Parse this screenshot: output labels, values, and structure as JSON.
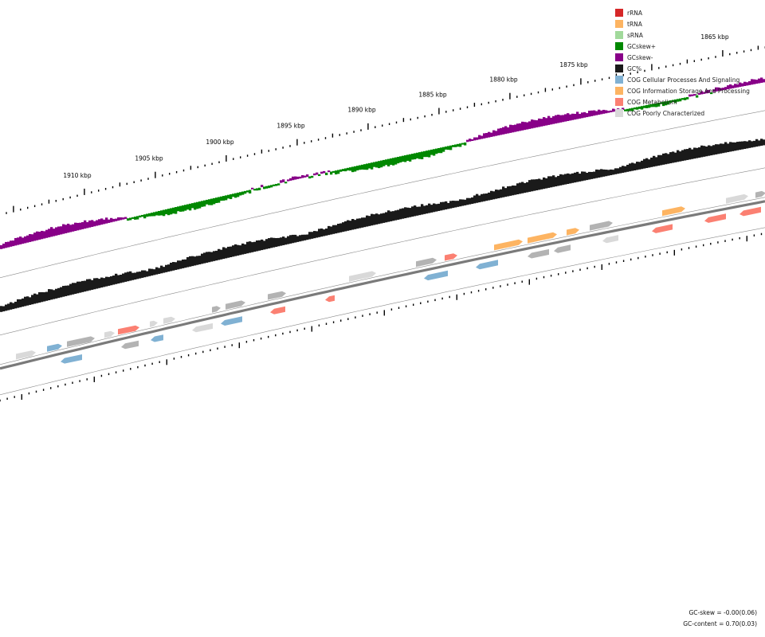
{
  "legend": [
    {
      "label": "rRNA",
      "color": "#d62728"
    },
    {
      "label": "tRNA",
      "color": "#fdb462"
    },
    {
      "label": "sRNA",
      "color": "#a1d99b"
    },
    {
      "label": "GCskew+",
      "color": "#008800"
    },
    {
      "label": "GCskew-",
      "color": "#880088"
    },
    {
      "label": "GC%",
      "color": "#1a1a1a"
    },
    {
      "label": "COG Cellular Processes And Signaling",
      "color": "#80b1d3"
    },
    {
      "label": "COG Information Storage And Processing",
      "color": "#fdb462"
    },
    {
      "label": "COG Metabolism",
      "color": "#fb8072"
    },
    {
      "label": "COG Poorly Characterized",
      "color": "#d9d9d9"
    }
  ],
  "ticks": [
    {
      "label": "1910 kbp"
    },
    {
      "label": "1905 kbp"
    },
    {
      "label": "1900 kbp"
    },
    {
      "label": "1895 kbp"
    },
    {
      "label": "1890 kbp"
    },
    {
      "label": "1885 kbp"
    },
    {
      "label": "1880 kbp"
    },
    {
      "label": "1875 kbp"
    },
    {
      "label": "1865 kbp"
    }
  ],
  "stats": {
    "gc_skew": "GC-skew = -0.00(0.06)",
    "gc_content": "GC-content = 0.70(0.03)"
  },
  "colors": {
    "skew_pos": "#008800",
    "skew_neg": "#880088",
    "gc": "#1a1a1a",
    "backbone": "#7a7a7a",
    "guide": "#8c8c8c",
    "cog_cellular": "#80b1d3",
    "cog_info": "#fdb462",
    "cog_metabolism": "#fb8072",
    "cog_poor": "#d9d9d9",
    "cog_gray": "#b3b3b3"
  }
}
